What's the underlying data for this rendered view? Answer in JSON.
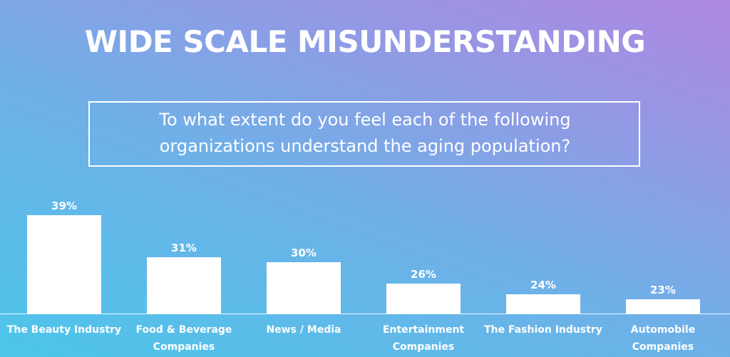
{
  "chart_data": {
    "type": "bar",
    "title": "WIDE SCALE MISUNDERSTANDING",
    "subtitle": "To what extent do you feel each of the following organizations understand the aging population?",
    "categories": [
      "The Beauty Industry",
      "Food & Beverage Companies",
      "News / Media",
      "Entertainment Companies",
      "The Fashion Industry",
      "Automobile Companies"
    ],
    "values": [
      39,
      31,
      30,
      26,
      24,
      23
    ],
    "value_labels": [
      "39%",
      "31%",
      "30%",
      "26%",
      "24%",
      "23%"
    ],
    "color": "#ffffff"
  }
}
